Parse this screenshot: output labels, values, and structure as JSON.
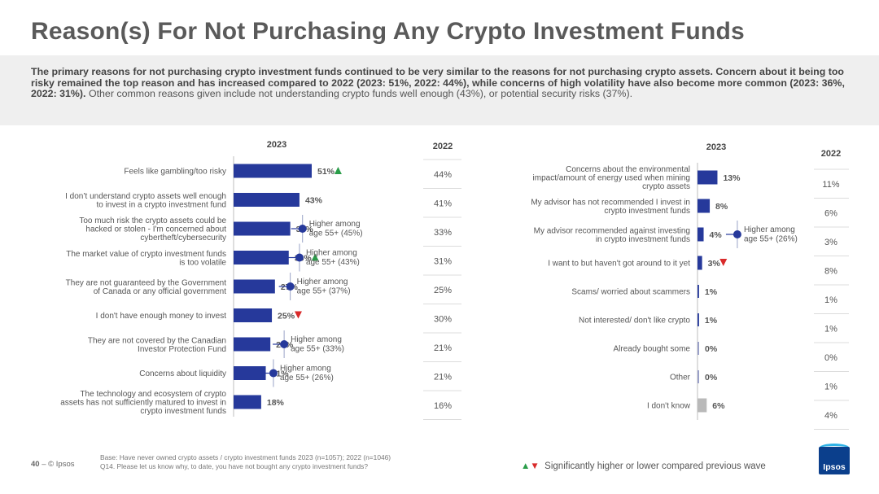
{
  "title": "Reason(s) For Not Purchasing Any Crypto Investment Funds",
  "summary": {
    "bold": "The primary reasons for not purchasing crypto investment funds continued to be very similar to the reasons for not purchasing crypto assets. Concern about it being too risky remained the top reason and has increased compared to 2022 (2023: 51%, 2022: 44%), while concerns of high volatility have also become more common (2023: 36%, 2022: 31%).",
    "normal": " Other common reasons given include not understanding crypto funds well enough (43%), or potential security risks (37%)."
  },
  "colors": {
    "bar": "#26399b",
    "bar_gray": "#b9b9b9",
    "up": "#2a9d49",
    "down": "#d92b2b",
    "subgroup": "#26399b"
  },
  "chart_data": [
    {
      "type": "bar",
      "orientation": "horizontal",
      "header_current": "2023",
      "header_previous": "2022",
      "max_value": 51,
      "categories": [
        [
          "Feels like gambling/too risky"
        ],
        [
          "I don’t understand crypto assets well enough",
          "to invest in a crypto investment fund"
        ],
        [
          "Too much risk the crypto assets could be",
          "hacked or stolen - I'm concerned about",
          "cybertheft/cybersecurity"
        ],
        [
          "The market value of crypto investment funds",
          "is too volatile"
        ],
        [
          "They are not guaranteed by the Government",
          "of Canada or any official government"
        ],
        [
          "I don't have enough money to invest"
        ],
        [
          "They are not covered by the Canadian",
          "Investor Protection Fund"
        ],
        [
          "Concerns about liquidity"
        ],
        [
          "The technology and ecosystem of crypto",
          "assets has not sufficiently matured to invest in",
          "crypto investment funds"
        ]
      ],
      "values_2023": [
        51,
        43,
        37,
        36,
        27,
        25,
        24,
        21,
        18
      ],
      "labels_2023": [
        "51%",
        "43%",
        "37%",
        "36%",
        "27%",
        "25%",
        "24%",
        "21%",
        "18%"
      ],
      "values_2022": [
        44,
        41,
        33,
        31,
        25,
        30,
        21,
        21,
        16
      ],
      "labels_2022": [
        "44%",
        "41%",
        "33%",
        "31%",
        "25%",
        "30%",
        "21%",
        "21%",
        "16%"
      ],
      "significance": [
        "up",
        "",
        "",
        "up",
        "",
        "down",
        "",
        "",
        ""
      ],
      "subgroup_notes": [
        null,
        null,
        {
          "value": 45,
          "lines": [
            "Higher among",
            "age 55+ (45%)"
          ]
        },
        {
          "value": 43,
          "lines": [
            "Higher among",
            "age 55+ (43%)"
          ]
        },
        {
          "value": 37,
          "lines": [
            "Higher among",
            "age 55+ (37%)"
          ]
        },
        null,
        {
          "value": 33,
          "lines": [
            "Higher among",
            "age 55+ (33%)"
          ]
        },
        {
          "value": 26,
          "lines": [
            "Higher among",
            "age 55+ (26%)"
          ]
        },
        null
      ]
    },
    {
      "type": "bar",
      "orientation": "horizontal",
      "header_current": "2023",
      "header_previous": "2022",
      "max_value": 51,
      "categories": [
        [
          "Concerns about the environmental",
          "impact/amount of energy used when mining",
          "crypto assets"
        ],
        [
          "My advisor has not recommended I invest in",
          "crypto investment funds"
        ],
        [
          "My advisor recommended against investing",
          "in crypto investment funds"
        ],
        [
          "I want to but haven't got around to it yet"
        ],
        [
          "Scams/ worried about scammers"
        ],
        [
          "Not interested/ don't like crypto"
        ],
        [
          "Already bought some"
        ],
        [
          "Other"
        ],
        [
          "I don't know"
        ]
      ],
      "values_2023": [
        13,
        8,
        4,
        3,
        1,
        1,
        0,
        0,
        6
      ],
      "labels_2023": [
        "13%",
        "8%",
        "4%",
        "3%",
        "1%",
        "1%",
        "0%",
        "0%",
        "6%"
      ],
      "values_2022": [
        11,
        6,
        3,
        8,
        1,
        1,
        0,
        1,
        4
      ],
      "labels_2022": [
        "11%",
        "6%",
        "3%",
        "8%",
        "1%",
        "1%",
        "0%",
        "1%",
        "4%"
      ],
      "significance": [
        "",
        "",
        "",
        "down",
        "",
        "",
        "",
        "",
        ""
      ],
      "gray_last": true,
      "subgroup_notes": [
        null,
        null,
        {
          "value": 26,
          "lines": [
            "Higher among",
            "age 55+ (26%)"
          ]
        },
        null,
        null,
        null,
        null,
        null,
        null
      ]
    }
  ],
  "footer": {
    "page_number": "40",
    "dash": "–",
    "copyright": "© Ipsos",
    "base_line1": "Base: Have never owned crypto assets / crypto investment funds 2023 (n=1057); 2022 (n=1046)",
    "base_line2": "Q14. Please let us know why, to date, you have not bought any crypto investment funds?"
  },
  "legend": {
    "up_symbol": "▲",
    "down_symbol": "▼",
    "text": "Significantly higher or lower compared previous wave"
  },
  "logo_text": "Ipsos"
}
